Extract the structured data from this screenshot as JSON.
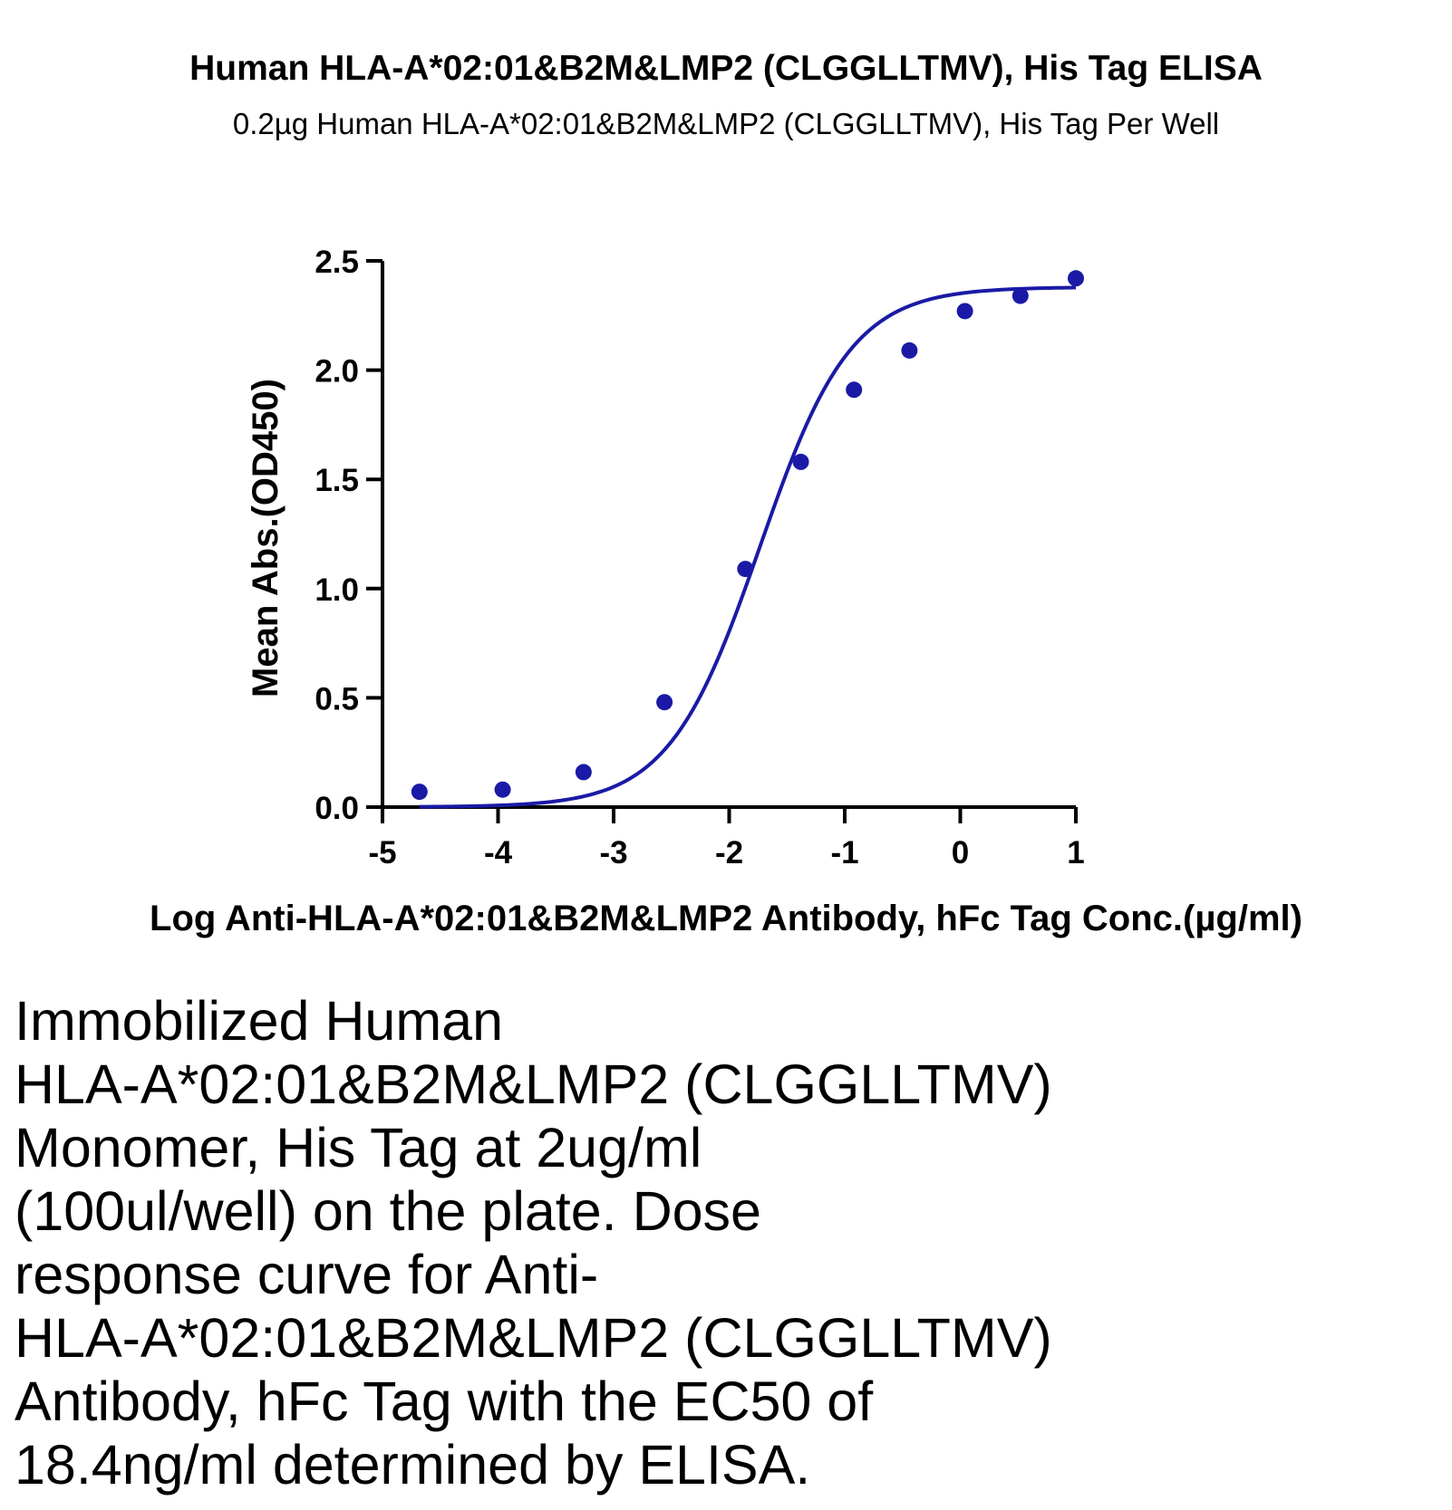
{
  "chart_data": {
    "type": "scatter",
    "title": "Human HLA-A*02:01&B2M&LMP2 (CLGGLLTMV), His Tag ELISA",
    "subtitle": "0.2µg Human HLA-A*02:01&B2M&LMP2 (CLGGLLTMV), His Tag Per Well",
    "xlabel": "Log Anti-HLA-A*02:01&B2M&LMP2 Antibody, hFc Tag Conc.(µg/ml)",
    "ylabel": "Mean Abs.(OD450)",
    "xlim": [
      -5,
      1
    ],
    "ylim": [
      0,
      2.5
    ],
    "x_ticks": [
      -5,
      -4,
      -3,
      -2,
      -1,
      0,
      1
    ],
    "x_tick_labels": [
      "-5",
      "-4",
      "-3",
      "-2",
      "-1",
      "0",
      "1"
    ],
    "y_ticks": [
      0,
      0.5,
      1,
      1.5,
      2,
      2.5
    ],
    "y_tick_labels": [
      "0.0",
      "0.5",
      "1.0",
      "1.5",
      "2.0",
      "2.5"
    ],
    "grid": false,
    "legend": "none",
    "series": [
      {
        "color": "#1a1aa6",
        "points": [
          {
            "x": -4.68,
            "y": 0.07
          },
          {
            "x": -3.96,
            "y": 0.08
          },
          {
            "x": -3.26,
            "y": 0.16
          },
          {
            "x": -2.56,
            "y": 0.48
          },
          {
            "x": -1.86,
            "y": 1.09
          },
          {
            "x": -1.38,
            "y": 1.58
          },
          {
            "x": -0.92,
            "y": 1.91
          },
          {
            "x": -0.44,
            "y": 2.09
          },
          {
            "x": 0.04,
            "y": 2.27
          },
          {
            "x": 0.52,
            "y": 2.34
          },
          {
            "x": 1.0,
            "y": 2.42
          }
        ],
        "fit": {
          "model": "4PL",
          "bottom": 0.0,
          "top": 2.38,
          "logEC50": -1.735,
          "hill": 1.1,
          "x_range": [
            -4.68,
            1.0
          ]
        }
      }
    ]
  },
  "caption": {
    "lines": [
      "Immobilized Human",
      "HLA-A*02:01&B2M&LMP2 (CLGGLLTMV)",
      "Monomer, His Tag at 2ug/ml",
      "(100ul/well) on the plate. Dose",
      "response curve for Anti-",
      "HLA-A*02:01&B2M&LMP2 (CLGGLLTMV)",
      "Antibody, hFc Tag with the EC50 of",
      "18.4ng/ml determined by ELISA."
    ]
  }
}
